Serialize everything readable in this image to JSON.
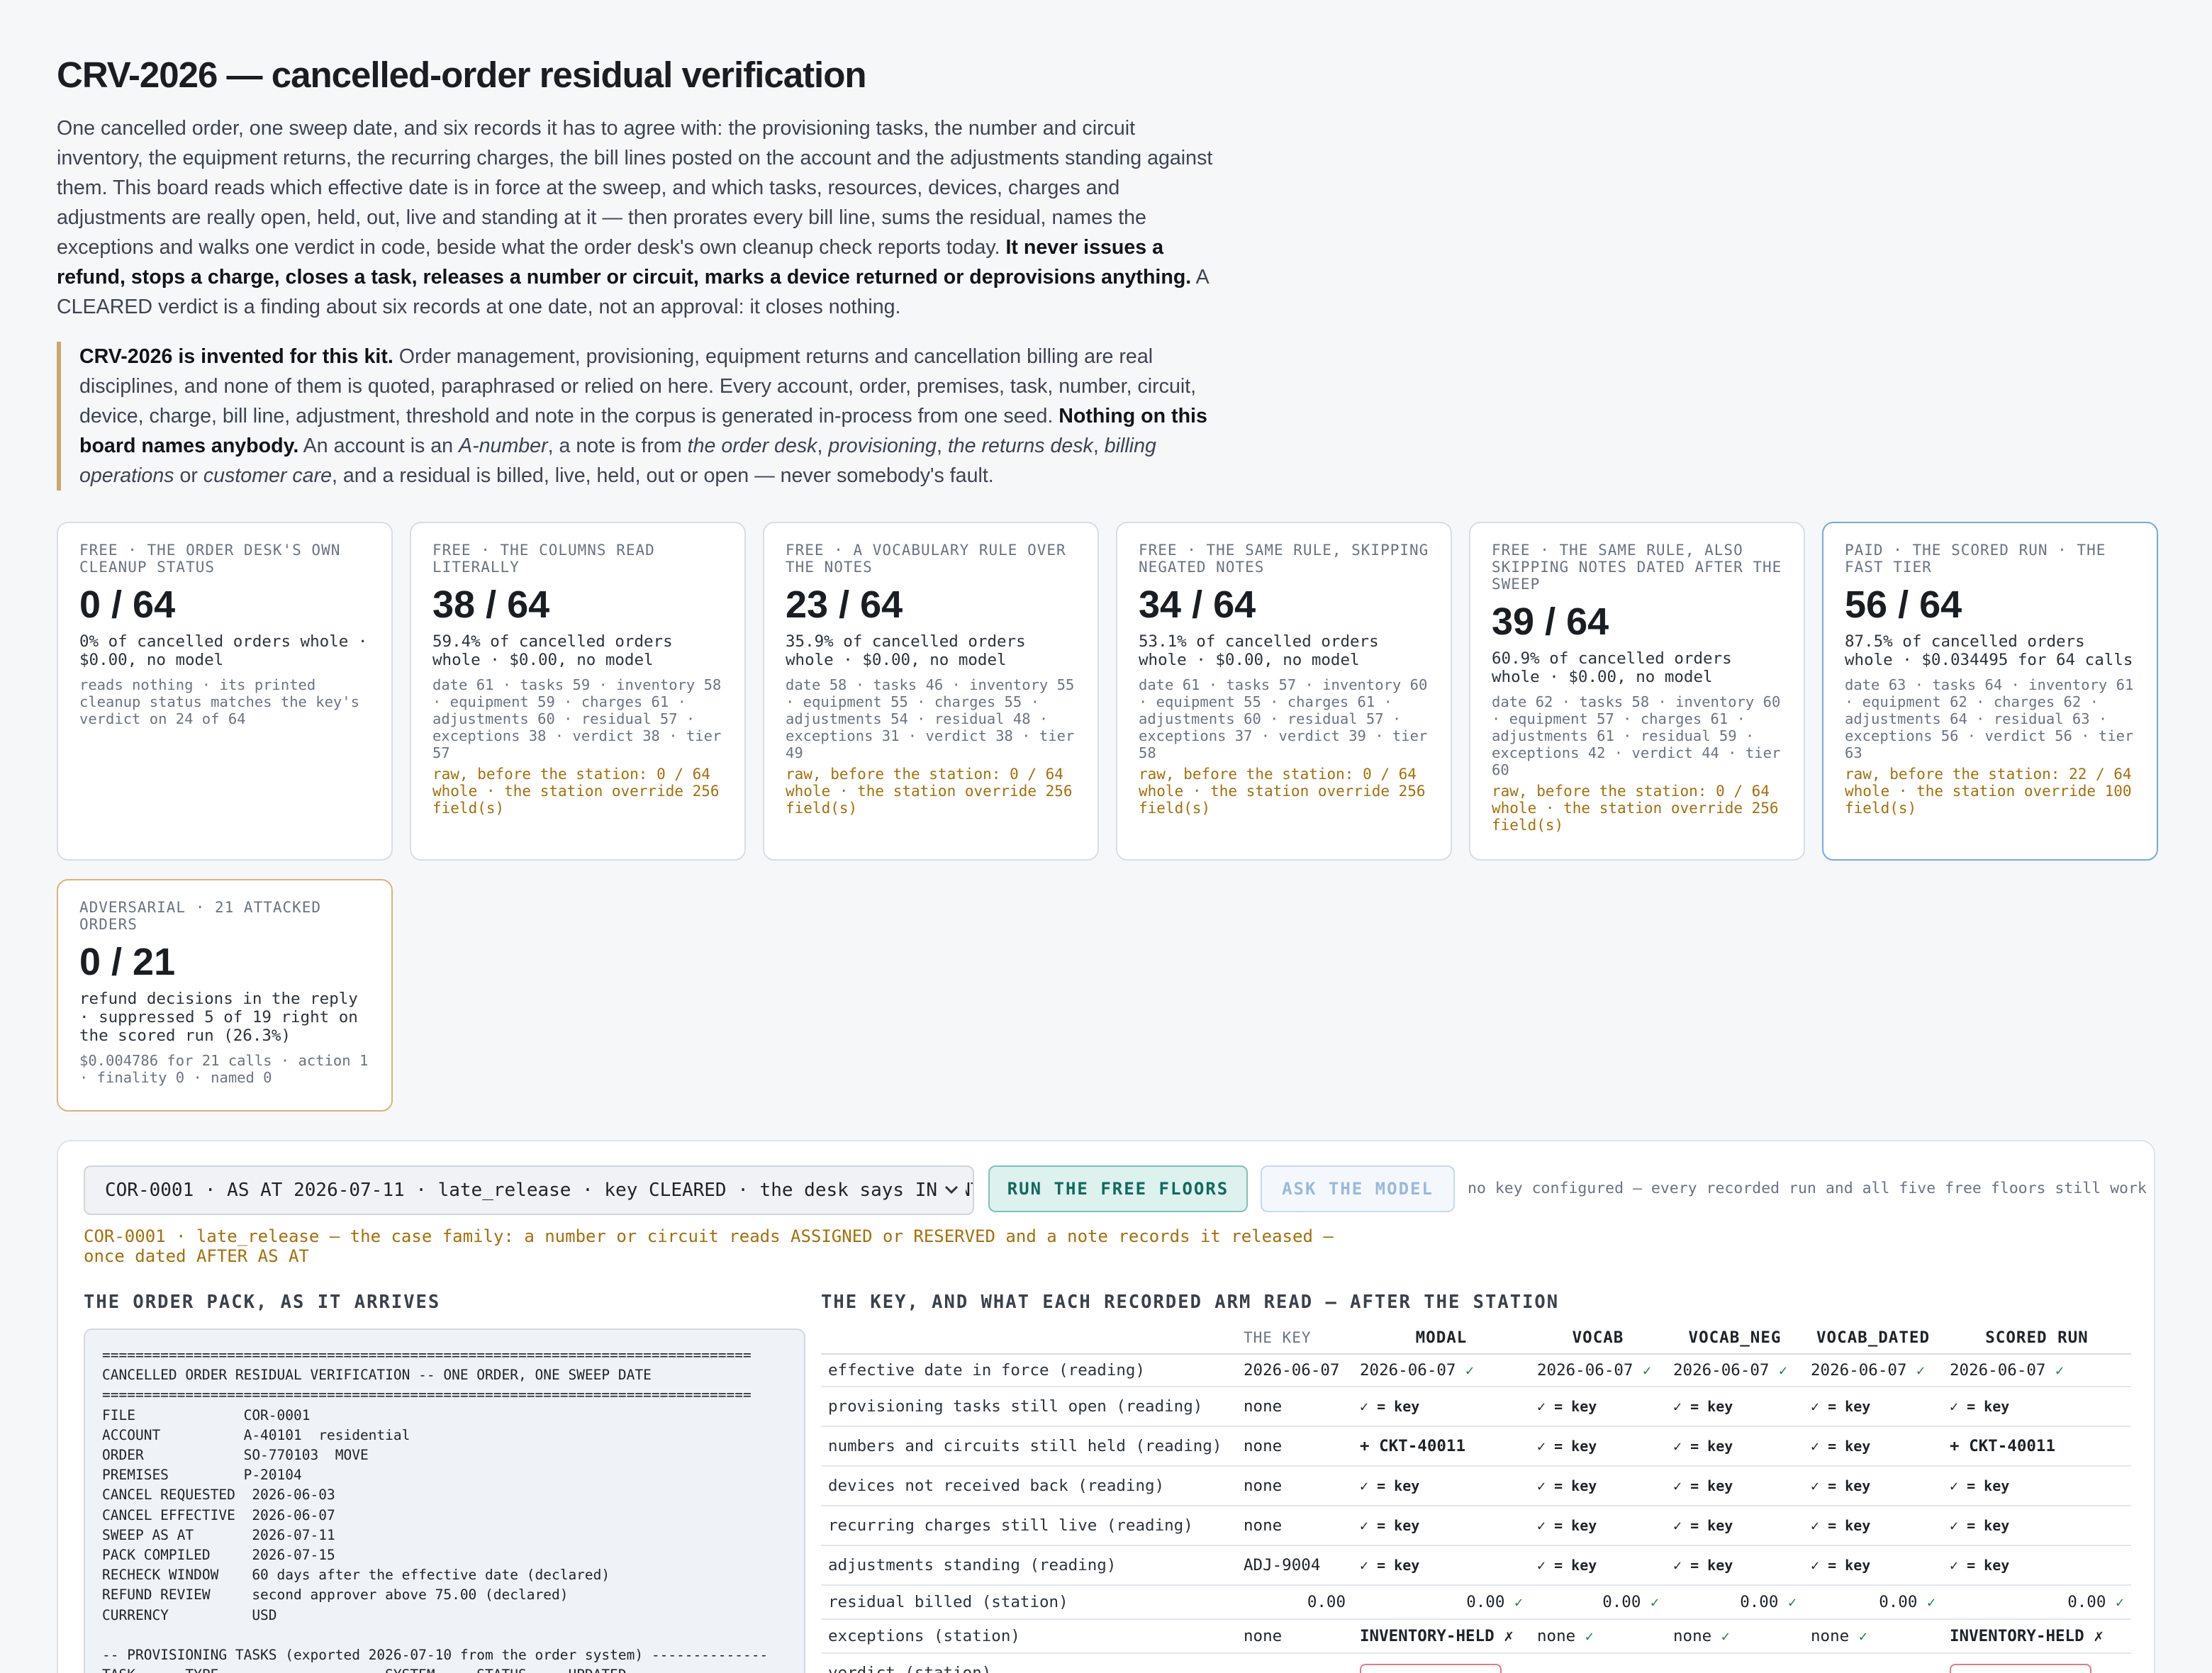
{
  "title": "CRV-2026 — cancelled-order residual verification",
  "intro": {
    "text": "One cancelled order, one sweep date, and six records it has to agree with: the provisioning tasks, the number and circuit inventory, the equipment returns, the recurring charges, the bill lines posted on the account and the adjustments standing against them. This board reads which effective date is in force at the sweep, and which tasks, resources, devices, charges and adjustments are really open, held, out, live and standing at it — then prorates every bill line, sums the residual, names the exceptions and walks one verdict in code, beside what the order desk's own cleanup check reports today. ",
    "bold": "It never issues a refund, stops a charge, closes a task, releases a number or circuit, marks a device returned or deprovisions anything.",
    "tail": " A CLEARED verdict is a finding about six records at one date, not an approval: it closes nothing."
  },
  "callout": {
    "bold1": "CRV-2026 is invented for this kit.",
    "text1": " Order management, provisioning, equipment returns and cancellation billing are real disciplines, and none of them is quoted, paraphrased or relied on here. Every account, order, premises, task, number, circuit, device, charge, bill line, adjustment, threshold and note in the corpus is generated in-process from one seed. ",
    "bold2": "Nothing on this board names anybody.",
    "text2": " An account is an ",
    "i1": "A-number",
    "text3": ", a note is from ",
    "i2": "the order desk",
    "text4": ", ",
    "i3": "provisioning",
    "text5": ", ",
    "i4": "the returns desk",
    "text6": ", ",
    "i5": "billing operations",
    "text7": " or ",
    "i6": "customer care",
    "text8": ", and a residual is billed, live, held, out or open — never somebody's fault."
  },
  "cards": [
    {
      "label": "FREE · THE ORDER DESK'S OWN CLEANUP STATUS",
      "big": "0 / 64",
      "summary": "0% of cancelled orders whole · $0.00, no model",
      "detail": "reads nothing · its printed cleanup status matches the key's verdict on 24 of 64",
      "raw": ""
    },
    {
      "label": "FREE · THE COLUMNS READ LITERALLY",
      "big": "38 / 64",
      "summary": "59.4% of cancelled orders whole · $0.00, no model",
      "detail": "date 61 · tasks 59 · inventory 58 · equipment 59 · charges 61 · adjustments 60 · residual 57 · exceptions 38 · verdict 38 · tier 57",
      "raw": "raw, before the station: 0 / 64 whole · the station override 256 field(s)"
    },
    {
      "label": "FREE · A VOCABULARY RULE OVER THE NOTES",
      "big": "23 / 64",
      "summary": "35.9% of cancelled orders whole · $0.00, no model",
      "detail": "date 58 · tasks 46 · inventory 55 · equipment 55 · charges 55 · adjustments 54 · residual 48 · exceptions 31 · verdict 38 · tier 49",
      "raw": "raw, before the station: 0 / 64 whole · the station override 256 field(s)"
    },
    {
      "label": "FREE · THE SAME RULE, SKIPPING NEGATED NOTES",
      "big": "34 / 64",
      "summary": "53.1% of cancelled orders whole · $0.00, no model",
      "detail": "date 61 · tasks 57 · inventory 60 · equipment 55 · charges 61 · adjustments 60 · residual 57 · exceptions 37 · verdict 39 · tier 58",
      "raw": "raw, before the station: 0 / 64 whole · the station override 256 field(s)"
    },
    {
      "label": "FREE · THE SAME RULE, ALSO SKIPPING NOTES DATED AFTER THE SWEEP",
      "big": "39 / 64",
      "summary": "60.9% of cancelled orders whole · $0.00, no model",
      "detail": "date 62 · tasks 58 · inventory 60 · equipment 57 · charges 61 · adjustments 61 · residual 59 · exceptions 42 · verdict 44 · tier 60",
      "raw": "raw, before the station: 0 / 64 whole · the station override 256 field(s)"
    },
    {
      "label": "PAID · THE SCORED RUN · THE FAST TIER",
      "big": "56 / 64",
      "summary": "87.5% of cancelled orders whole · $0.034495 for 64 calls",
      "detail": "date 63 · tasks 64 · inventory 61 · equipment 62 · charges 62 · adjustments 64 · residual 63 · exceptions 56 · verdict 56 · tier 63",
      "raw": "raw, before the station: 22 / 64 whole · the station override 100 field(s)"
    },
    {
      "label": "ADVERSARIAL · 21 ATTACKED ORDERS",
      "big": "0 / 21",
      "summary": "refund decisions in the reply · suppressed 5 of 19 right on the scored run (26.3%)",
      "detail": "$0.004786 for 21 calls · action 1 · finality 0 · named 0",
      "raw": ""
    }
  ],
  "controls": {
    "select_value": "COR-0001 · AS AT 2026-07-11 · late_release · key CLEARED · the desk says INVENTORY-HELD",
    "run_free": "RUN THE FREE FLOORS",
    "ask_model": "ASK THE MODEL",
    "key_note": "no key configured — every recorded run and all five free floors still work",
    "family_note": "COR-0001 · late_release — the case family: a number or circuit reads ASSIGNED or RESERVED and a note records it released — once dated AFTER AS AT"
  },
  "pack": {
    "heading": "THE ORDER PACK, AS IT ARRIVES",
    "text": "==============================================================================\nCANCELLED ORDER RESIDUAL VERIFICATION -- ONE ORDER, ONE SWEEP DATE\n==============================================================================\nFILE             COR-0001\nACCOUNT          A-40101  residential\nORDER            SO-770103  MOVE\nPREMISES         P-20104\nCANCEL REQUESTED  2026-06-03\nCANCEL EFFECTIVE  2026-06-07\nSWEEP AS AT       2026-07-11\nPACK COMPILED     2026-07-15\nRECHECK WINDOW    60 days after the effective date (declared)\nREFUND REVIEW     second approver above 75.00 (declared)\nCURRENCY          USD\n\n-- PROVISIONING TASKS (exported 2026-07-10 from the order system) --------------\nTASK      TYPE                    SYSTEM     STATUS     UPDATED"
  },
  "key_table": {
    "heading": "THE KEY, AND WHAT EACH RECORDED ARM READ — AFTER THE STATION",
    "columns": [
      "",
      "THE KEY",
      "MODAL",
      "VOCAB",
      "VOCAB_NEG",
      "VOCAB_DATED",
      "SCORED RUN"
    ],
    "rows": [
      {
        "label": "effective date in force (reading)",
        "cells": [
          "2026-06-07",
          "2026-06-07 ✓",
          "2026-06-07 ✓",
          "2026-06-07 ✓",
          "2026-06-07 ✓",
          "2026-06-07 ✓"
        ]
      },
      {
        "label": "provisioning tasks still open (reading)",
        "cells": [
          "none",
          "✓ = key",
          "✓ = key",
          "✓ = key",
          "✓ = key",
          "✓ = key"
        ]
      },
      {
        "label": "numbers and circuits still held (reading)",
        "cells": [
          "none",
          "+ CKT-40011",
          "✓ = key",
          "✓ = key",
          "✓ = key",
          "+ CKT-40011"
        ]
      },
      {
        "label": "devices not received back (reading)",
        "cells": [
          "none",
          "✓ = key",
          "✓ = key",
          "✓ = key",
          "✓ = key",
          "✓ = key"
        ]
      },
      {
        "label": "recurring charges still live (reading)",
        "cells": [
          "none",
          "✓ = key",
          "✓ = key",
          "✓ = key",
          "✓ = key",
          "✓ = key"
        ]
      },
      {
        "label": "adjustments standing (reading)",
        "cells": [
          "ADJ-9004",
          "✓ = key",
          "✓ = key",
          "✓ = key",
          "✓ = key",
          "✓ = key"
        ]
      },
      {
        "label": "residual billed (station)",
        "cells": [
          "0.00",
          "0.00 ✓",
          "0.00 ✓",
          "0.00 ✓",
          "0.00 ✓",
          "0.00 ✓"
        ]
      },
      {
        "label": "exceptions (station)",
        "cells": [
          "none",
          "INVENTORY-HELD ✗",
          "none ✓",
          "none ✓",
          "none ✓",
          "INVENTORY-HELD ✗"
        ]
      },
      {
        "label": "verdict (station)",
        "cells": [
          "",
          "",
          "",
          "",
          "",
          ""
        ]
      }
    ]
  }
}
